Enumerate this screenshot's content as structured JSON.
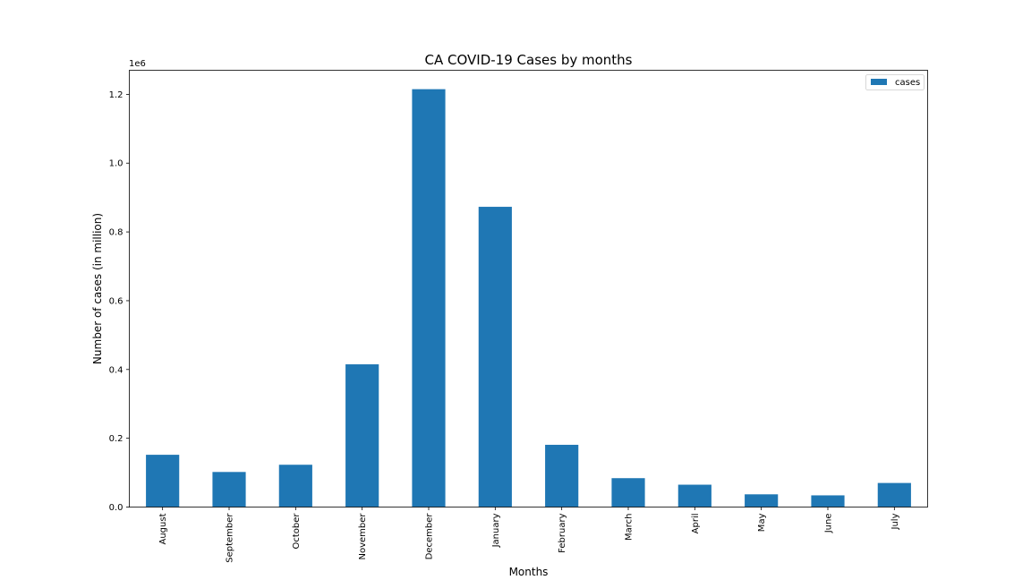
{
  "chart_data": {
    "type": "bar",
    "title": "CA COVID-19 Cases by months",
    "xlabel": "Months",
    "ylabel": "Number of cases (in million)",
    "offset_label": "1e6",
    "categories": [
      "August",
      "September",
      "October",
      "November",
      "December",
      "January",
      "February",
      "March",
      "April",
      "May",
      "June",
      "July"
    ],
    "series": [
      {
        "name": "cases",
        "color": "#1f77b4",
        "values": [
          152000,
          102000,
          123000,
          415000,
          1215000,
          873000,
          181000,
          84000,
          65000,
          37000,
          34000,
          70000
        ]
      }
    ],
    "ylim": [
      0,
      1270000
    ],
    "yticks": [
      0,
      200000,
      400000,
      600000,
      800000,
      1000000,
      1200000
    ],
    "ytick_labels": [
      "0.0",
      "0.2",
      "0.4",
      "0.6",
      "0.8",
      "1.0",
      "1.2"
    ],
    "grid": false,
    "legend_position": "top-right"
  }
}
